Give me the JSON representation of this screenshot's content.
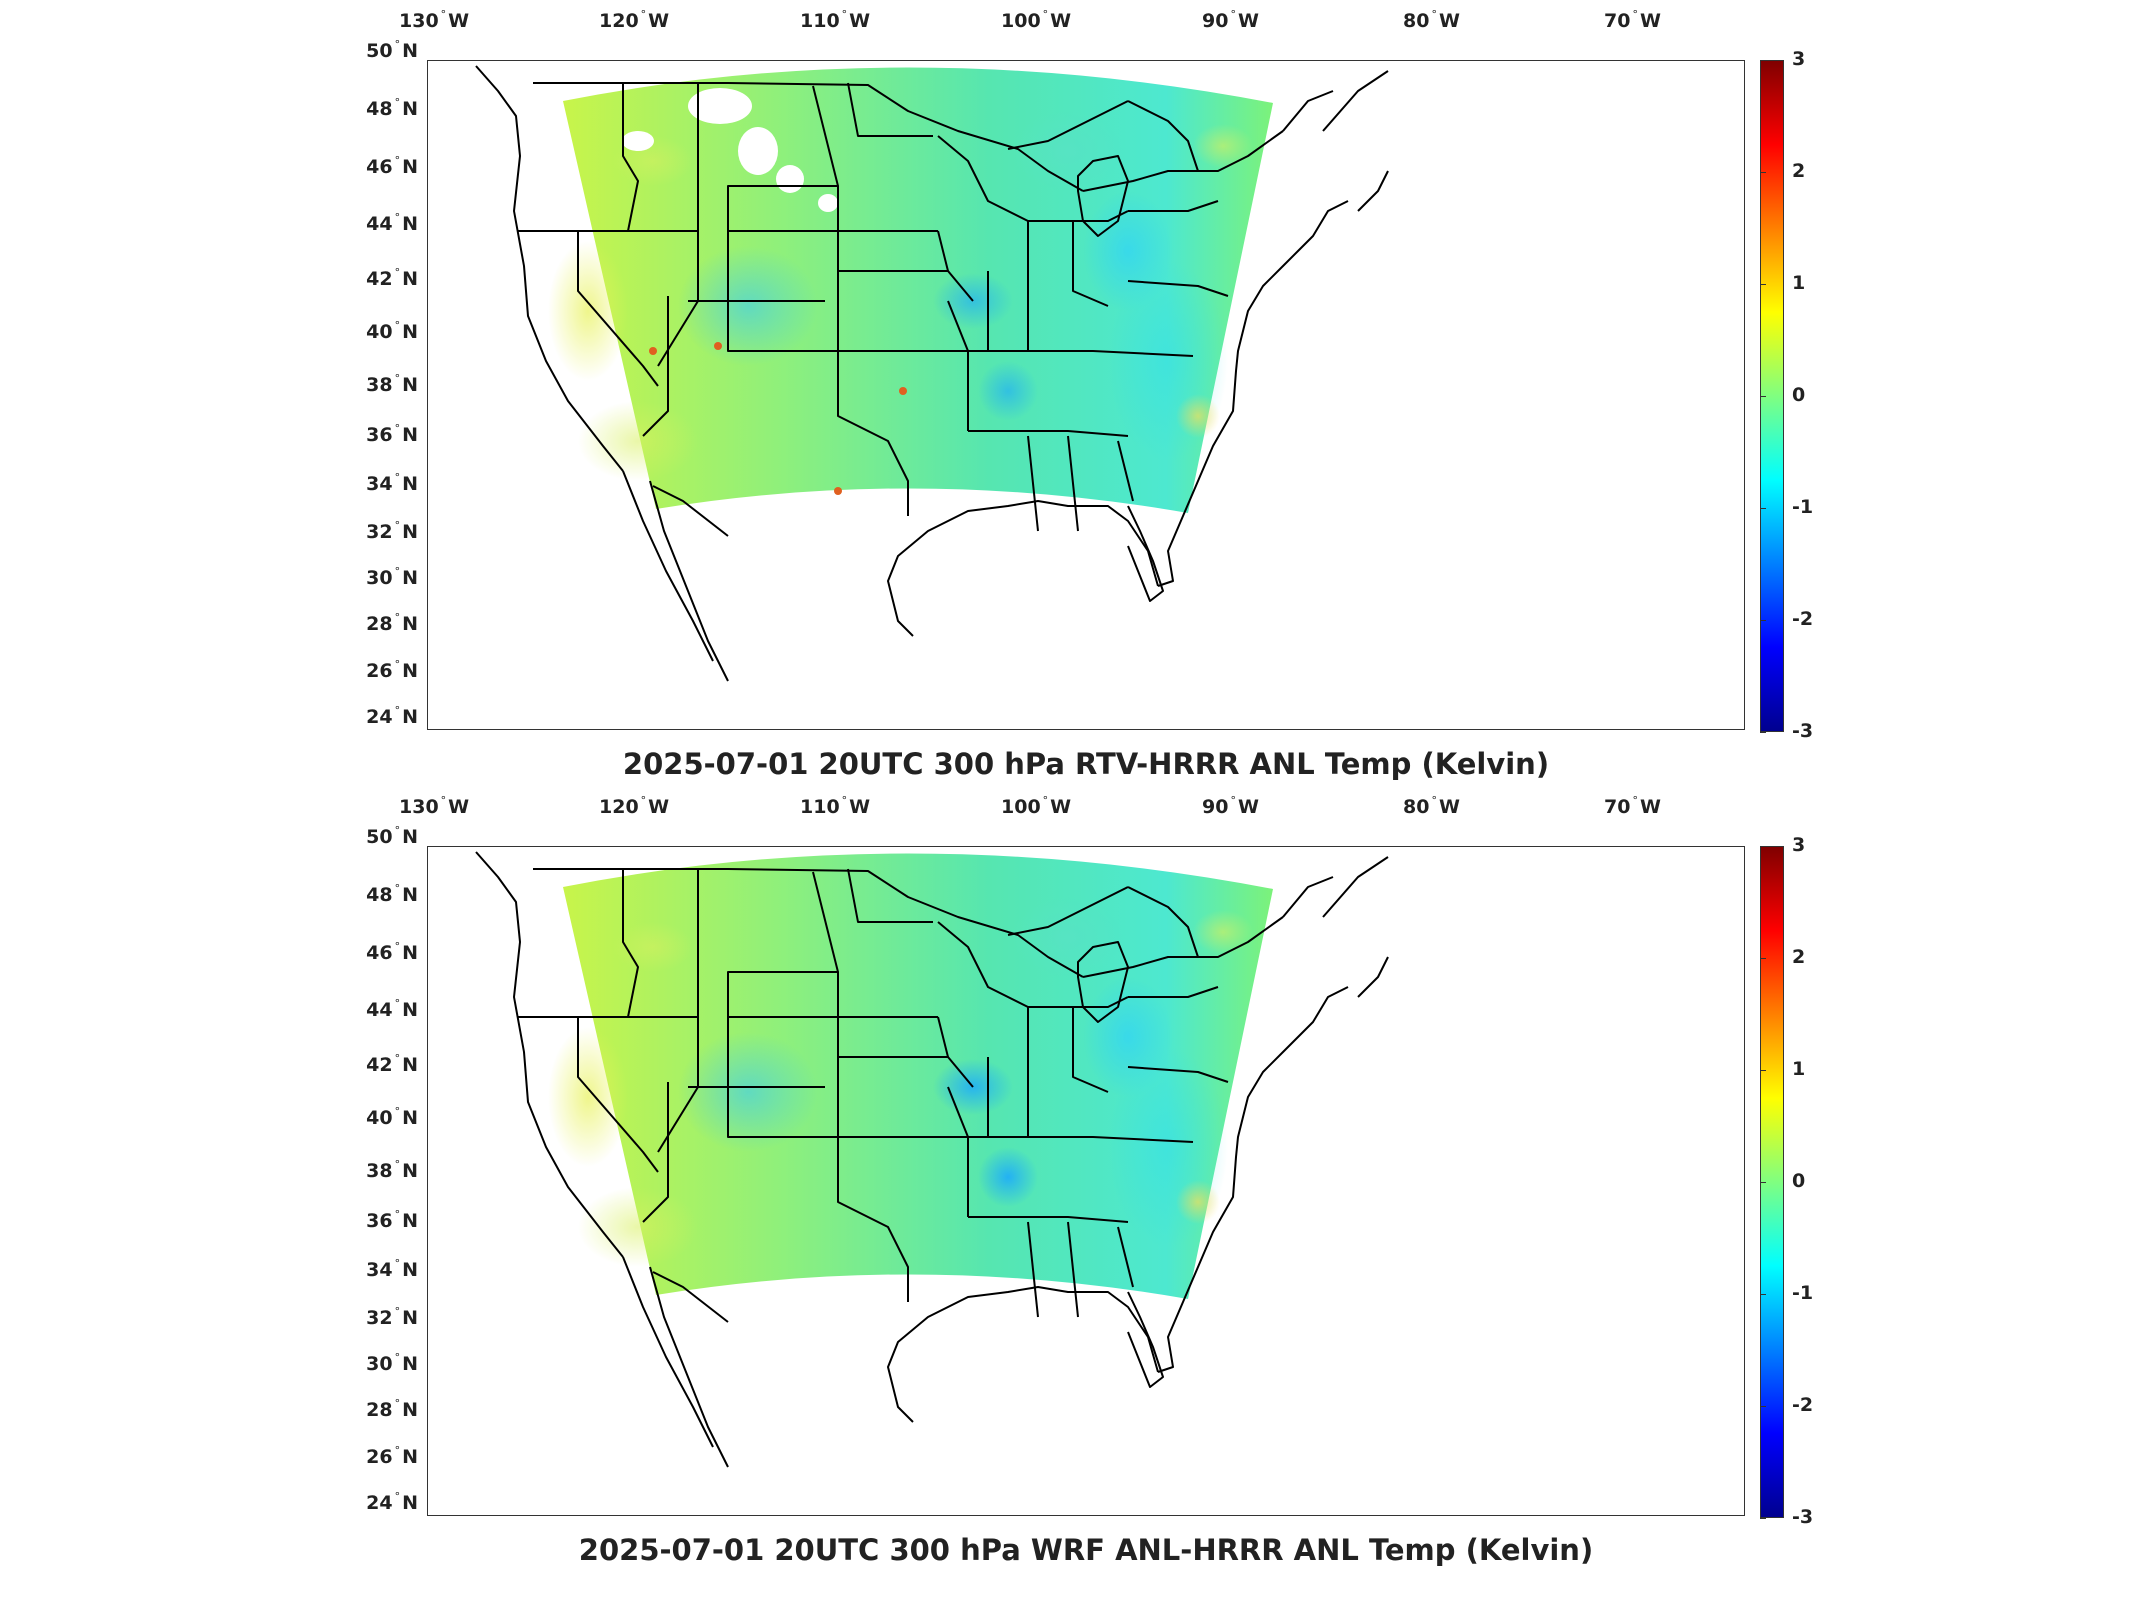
{
  "panels": [
    {
      "id": "top",
      "title": "2025-07-01 20UTC 300 hPa RTV-HRRR ANL Temp (Kelvin)",
      "variant": "rtv"
    },
    {
      "id": "bottom",
      "title": "2025-07-01 20UTC 300 hPa WRF ANL-HRRR ANL Temp (Kelvin)",
      "variant": "wrf"
    }
  ],
  "longitude_ticks": [
    {
      "value": 130,
      "deg": "°",
      "dir": "W"
    },
    {
      "value": 120,
      "deg": "°",
      "dir": "W"
    },
    {
      "value": 110,
      "deg": "°",
      "dir": "W"
    },
    {
      "value": 100,
      "deg": "°",
      "dir": "W"
    },
    {
      "value": 90,
      "deg": "°",
      "dir": "W"
    },
    {
      "value": 80,
      "deg": "°",
      "dir": "W"
    },
    {
      "value": 70,
      "deg": "°",
      "dir": "W"
    }
  ],
  "latitude_ticks": [
    {
      "value": 50,
      "deg": "°",
      "dir": "N"
    },
    {
      "value": 48,
      "deg": "°",
      "dir": "N"
    },
    {
      "value": 46,
      "deg": "°",
      "dir": "N"
    },
    {
      "value": 44,
      "deg": "°",
      "dir": "N"
    },
    {
      "value": 42,
      "deg": "°",
      "dir": "N"
    },
    {
      "value": 40,
      "deg": "°",
      "dir": "N"
    },
    {
      "value": 38,
      "deg": "°",
      "dir": "N"
    },
    {
      "value": 36,
      "deg": "°",
      "dir": "N"
    },
    {
      "value": 34,
      "deg": "°",
      "dir": "N"
    },
    {
      "value": 32,
      "deg": "°",
      "dir": "N"
    },
    {
      "value": 30,
      "deg": "°",
      "dir": "N"
    },
    {
      "value": 28,
      "deg": "°",
      "dir": "N"
    },
    {
      "value": 26,
      "deg": "°",
      "dir": "N"
    },
    {
      "value": 24,
      "deg": "°",
      "dir": "N"
    }
  ],
  "colorbar": {
    "min": -3,
    "max": 3,
    "ticks": [
      "3",
      "2",
      "1",
      "0",
      "-1",
      "-2",
      "-3"
    ],
    "colormap": [
      "#00008f",
      "#0000ff",
      "#0080ff",
      "#00ffff",
      "#80ff80",
      "#ffff00",
      "#ff8000",
      "#ff0000",
      "#800000"
    ]
  },
  "colors": {
    "dominant_field": "#7cf27a",
    "cool_anomaly": "#33c8ff",
    "warm_anomaly": "#e8f25a",
    "boundary": "#000000"
  }
}
